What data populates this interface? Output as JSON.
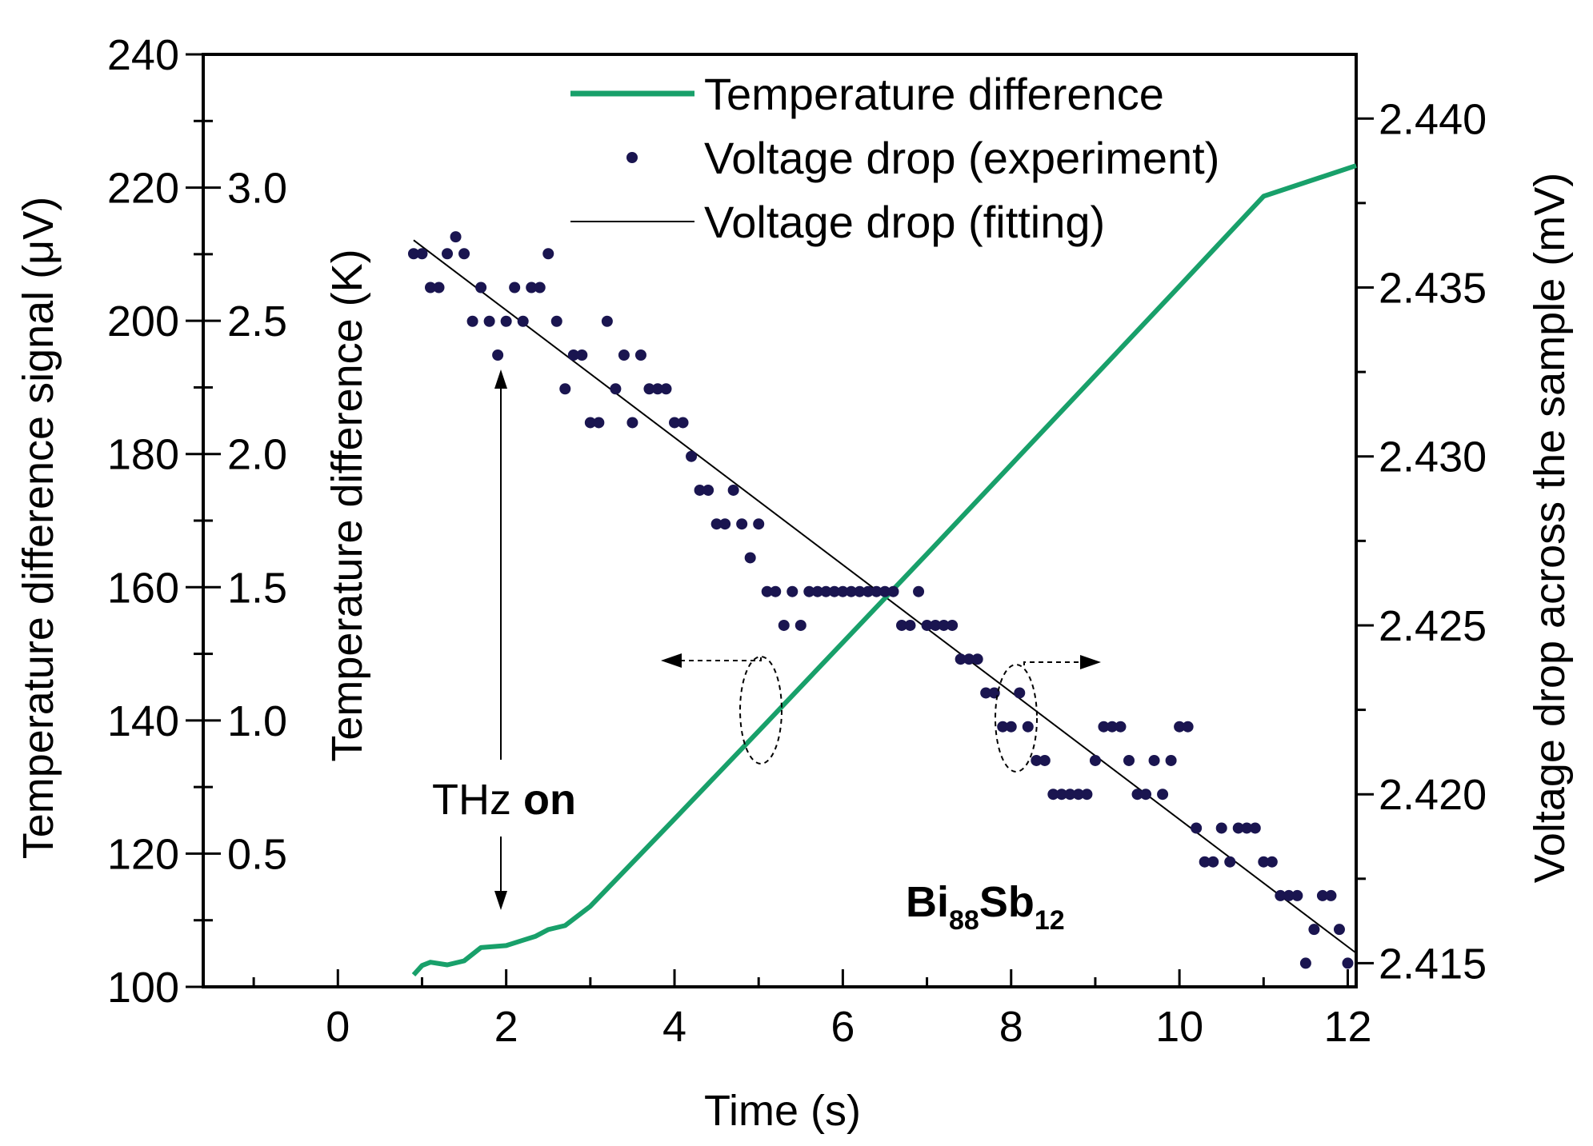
{
  "chart_data": {
    "type": "line+scatter",
    "xlabel": "Time (s)",
    "x_ticks": [
      "0",
      "2",
      "4",
      "6",
      "8",
      "10",
      "12"
    ],
    "xlim": [
      -1.6,
      12.1
    ],
    "left_axes": [
      {
        "label": "Temperature difference signal (μV)",
        "ylim": [
          100,
          240
        ],
        "ticks": [
          "100",
          "120",
          "140",
          "160",
          "180",
          "200",
          "220",
          "240"
        ]
      },
      {
        "label": "Temperature difference (K)",
        "ylim": [
          0.0,
          3.5
        ],
        "ticks": [
          "0.5",
          "1.0",
          "1.5",
          "2.0",
          "2.5",
          "3.0"
        ]
      }
    ],
    "right_axis": {
      "label": "Voltage drop across the sample (mV)",
      "ylim": [
        2.4143,
        2.4419
      ],
      "ticks": [
        "2.415",
        "2.420",
        "2.425",
        "2.430",
        "2.435",
        "2.440"
      ]
    },
    "legend": [
      {
        "label": "Temperature difference",
        "color": "#18a06a",
        "style": "line"
      },
      {
        "label": "Voltage drop (experiment)",
        "color": "#1a1550",
        "style": "marker"
      },
      {
        "label": "Voltage drop (fitting)",
        "color": "#000000",
        "style": "thin-line"
      }
    ],
    "series": [
      {
        "name": "Temperature difference",
        "axis": "left",
        "color": "#18a06a",
        "x": [
          0.9,
          1.0,
          1.1,
          1.3,
          1.5,
          1.7,
          2.0,
          2.2,
          2.35,
          2.5,
          2.7,
          3.0,
          4.0,
          5.0,
          6.0,
          7.0,
          8.0,
          9.0,
          10.0,
          11.0,
          12.1
        ],
        "y": [
          101.8,
          103.2,
          103.7,
          103.3,
          103.9,
          105.9,
          106.2,
          107.0,
          107.6,
          108.6,
          109.2,
          112.1,
          125.2,
          138.4,
          151.7,
          165.0,
          178.4,
          191.8,
          205.2,
          218.7,
          223.3
        ]
      },
      {
        "name": "Voltage drop (experiment)",
        "axis": "right",
        "color": "#1a1550",
        "x": [
          0.9,
          1.0,
          1.1,
          1.2,
          1.3,
          1.4,
          1.5,
          1.6,
          1.7,
          1.8,
          1.9,
          2.0,
          2.1,
          2.2,
          2.3,
          2.4,
          2.5,
          2.6,
          2.7,
          2.8,
          2.9,
          3.0,
          3.1,
          3.2,
          3.3,
          3.4,
          3.5,
          3.6,
          3.7,
          3.8,
          3.9,
          4.0,
          4.1,
          4.2,
          4.3,
          4.4,
          4.5,
          4.6,
          4.7,
          4.8,
          4.9,
          5.0,
          5.1,
          5.2,
          5.3,
          5.4,
          5.5,
          5.6,
          5.7,
          5.8,
          5.9,
          6.0,
          6.1,
          6.2,
          6.3,
          6.4,
          6.5,
          6.6,
          6.7,
          6.8,
          6.9,
          7.0,
          7.1,
          7.2,
          7.3,
          7.4,
          7.5,
          7.6,
          7.7,
          7.8,
          7.9,
          8.0,
          8.1,
          8.2,
          8.3,
          8.4,
          8.5,
          8.6,
          8.7,
          8.8,
          8.9,
          9.0,
          9.1,
          9.2,
          9.3,
          9.4,
          9.5,
          9.6,
          9.7,
          9.8,
          9.9,
          10.0,
          10.1,
          10.2,
          10.3,
          10.4,
          10.5,
          10.6,
          10.7,
          10.8,
          10.9,
          11.0,
          11.1,
          11.2,
          11.3,
          11.4,
          11.5,
          11.6,
          11.7,
          11.8,
          11.9,
          12.0
        ],
        "y": [
          2.436,
          2.436,
          2.435,
          2.435,
          2.436,
          2.4365,
          2.436,
          2.434,
          2.435,
          2.434,
          2.433,
          2.434,
          2.435,
          2.434,
          2.435,
          2.435,
          2.436,
          2.434,
          2.432,
          2.433,
          2.433,
          2.431,
          2.431,
          2.434,
          2.432,
          2.433,
          2.431,
          2.433,
          2.432,
          2.432,
          2.432,
          2.431,
          2.431,
          2.43,
          2.429,
          2.429,
          2.428,
          2.428,
          2.429,
          2.428,
          2.427,
          2.428,
          2.426,
          2.426,
          2.425,
          2.426,
          2.425,
          2.426,
          2.426,
          2.426,
          2.426,
          2.426,
          2.426,
          2.426,
          2.426,
          2.426,
          2.426,
          2.426,
          2.425,
          2.425,
          2.426,
          2.425,
          2.425,
          2.425,
          2.425,
          2.424,
          2.424,
          2.424,
          2.423,
          2.423,
          2.422,
          2.422,
          2.423,
          2.422,
          2.421,
          2.421,
          2.42,
          2.42,
          2.42,
          2.42,
          2.42,
          2.421,
          2.422,
          2.422,
          2.422,
          2.421,
          2.42,
          2.42,
          2.421,
          2.42,
          2.421,
          2.422,
          2.422,
          2.419,
          2.418,
          2.418,
          2.419,
          2.418,
          2.419,
          2.419,
          2.419,
          2.418,
          2.418,
          2.417,
          2.417,
          2.417,
          2.415,
          2.416,
          2.417,
          2.417,
          2.416,
          2.415
        ]
      },
      {
        "name": "Voltage drop (fitting)",
        "axis": "right",
        "color": "#000000",
        "x": [
          0.9,
          12.1
        ],
        "y": [
          2.4364,
          2.4153
        ]
      }
    ],
    "annotations": [
      {
        "text_normal": "THz ",
        "text_bold": "on",
        "type": "double-arrow",
        "x": 2.0
      },
      {
        "type": "dashed-ellipse",
        "points_to": "left axis"
      },
      {
        "type": "dashed-ellipse",
        "points_to": "right axis"
      }
    ],
    "sample_label": {
      "base1": "Bi",
      "sub1": "88",
      "base2": "Sb",
      "sub2": "12"
    }
  }
}
